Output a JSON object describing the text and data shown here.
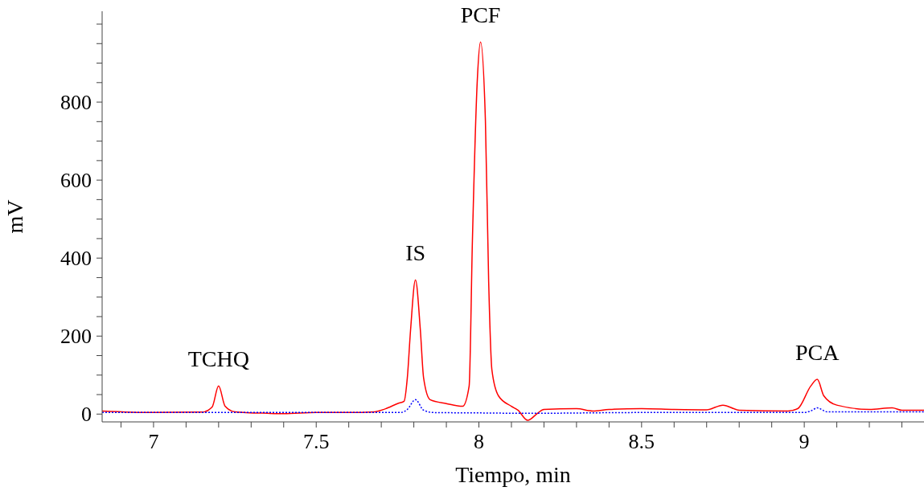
{
  "chart_data": {
    "type": "line",
    "xlabel": "Tiempo, min",
    "ylabel": "mV",
    "xlim": [
      6.842,
      9.368
    ],
    "ylim": [
      -20,
      1033
    ],
    "xticks": [
      {
        "value": 6.9,
        "label": null
      },
      7,
      {
        "value": 7.1,
        "label": null
      },
      {
        "value": 7.2,
        "label": null
      },
      {
        "value": 7.3,
        "label": null
      },
      {
        "value": 7.4,
        "label": null
      },
      7.5,
      {
        "value": 7.6,
        "label": null
      },
      {
        "value": 7.7,
        "label": null
      },
      {
        "value": 7.8,
        "label": null
      },
      {
        "value": 7.9,
        "label": null
      },
      8,
      {
        "value": 8.1,
        "label": null
      },
      {
        "value": 8.2,
        "label": null
      },
      {
        "value": 8.3,
        "label": null
      },
      {
        "value": 8.4,
        "label": null
      },
      8.5,
      {
        "value": 8.6,
        "label": null
      },
      {
        "value": 8.7,
        "label": null
      },
      {
        "value": 8.8,
        "label": null
      },
      {
        "value": 8.9,
        "label": null
      },
      9,
      {
        "value": 9.1,
        "label": null
      },
      {
        "value": 9.2,
        "label": null
      },
      {
        "value": 9.3,
        "label": null
      }
    ],
    "yticks": [
      0,
      {
        "value": 50,
        "label": null
      },
      {
        "value": 100,
        "label": null
      },
      {
        "value": 150,
        "label": null
      },
      200,
      {
        "value": 250,
        "label": null
      },
      {
        "value": 300,
        "label": null
      },
      {
        "value": 350,
        "label": null
      },
      400,
      {
        "value": 450,
        "label": null
      },
      {
        "value": 500,
        "label": null
      },
      {
        "value": 550,
        "label": null
      },
      600,
      {
        "value": 650,
        "label": null
      },
      {
        "value": 700,
        "label": null
      },
      {
        "value": 750,
        "label": null
      },
      800,
      {
        "value": 850,
        "label": null
      },
      {
        "value": 900,
        "label": null
      },
      {
        "value": 950,
        "label": null
      },
      {
        "value": 1000,
        "label": null
      }
    ],
    "marker": "none",
    "series": [
      {
        "color": "#ff0000",
        "line_style": "solid",
        "x": [
          6.842,
          7.0,
          7.15,
          7.18,
          7.2,
          7.22,
          7.25,
          7.35,
          7.4,
          7.5,
          7.6,
          7.68,
          7.72,
          7.75,
          7.77,
          7.78,
          7.79,
          7.805,
          7.82,
          7.83,
          7.85,
          7.9,
          7.95,
          7.97,
          7.98,
          7.995,
          8.005,
          8.02,
          8.03,
          8.04,
          8.06,
          8.1,
          8.12,
          8.15,
          8.18,
          8.2,
          8.3,
          8.35,
          8.4,
          8.5,
          8.6,
          8.7,
          8.75,
          8.8,
          8.95,
          8.98,
          9.02,
          9.04,
          9.06,
          9.1,
          9.2,
          9.27,
          9.3,
          9.368
        ],
        "values": [
          8,
          4,
          5,
          18,
          72,
          20,
          6,
          2,
          1,
          4,
          4,
          6,
          16,
          27,
          33,
          93,
          216,
          344,
          216,
          93,
          37,
          27,
          20,
          72,
          443,
          855,
          954,
          752,
          340,
          113,
          47,
          20,
          10,
          -16,
          2,
          12,
          14,
          8,
          12,
          14,
          12,
          11,
          23,
          10,
          8,
          14,
          72,
          89,
          47,
          23,
          12,
          16,
          10,
          10
        ]
      },
      {
        "color": "#0000ff",
        "line_style": "dotted",
        "x": [
          6.842,
          7.5,
          7.76,
          7.78,
          7.805,
          7.83,
          7.86,
          8.0,
          8.15,
          8.5,
          9.0,
          9.02,
          9.04,
          9.07,
          9.368
        ],
        "values": [
          4,
          4,
          4,
          12,
          37,
          10,
          4,
          3,
          2,
          4,
          4,
          8,
          16,
          6,
          6
        ]
      }
    ],
    "annotations": [
      {
        "text": "TCHQ",
        "x": 7.2,
        "y": 72
      },
      {
        "text": "IS",
        "x": 7.805,
        "y": 344
      },
      {
        "text": "PCF",
        "x": 8.005,
        "y": 954
      },
      {
        "text": "PCA",
        "x": 9.04,
        "y": 89
      }
    ]
  }
}
